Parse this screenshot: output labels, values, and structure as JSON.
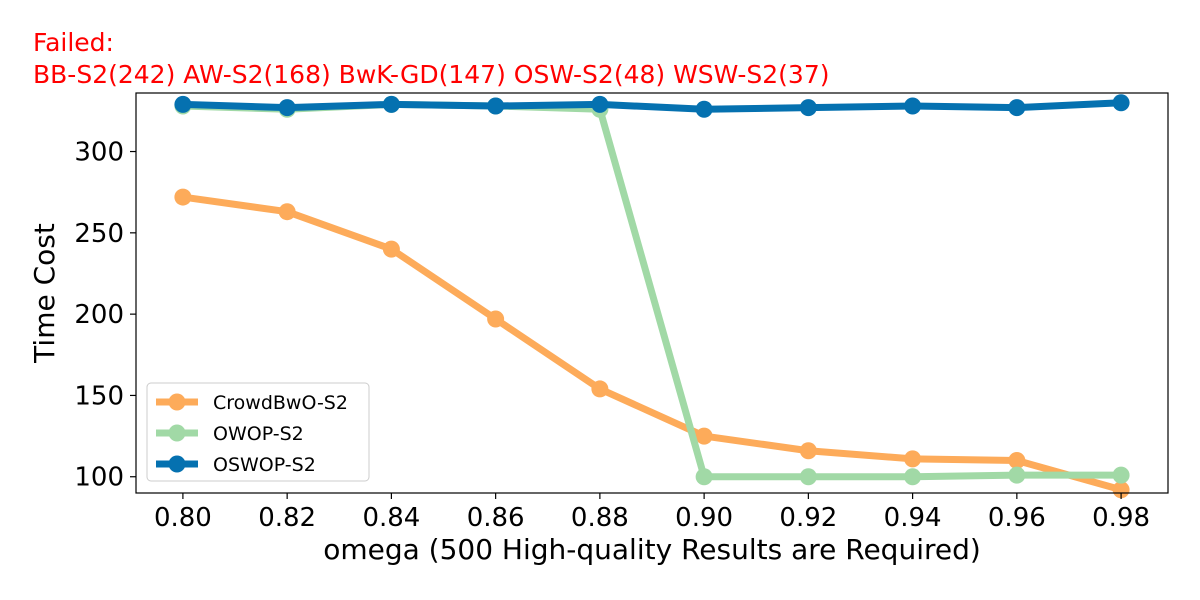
{
  "chart_data": {
    "type": "line",
    "title_lines": [
      "Failed:",
      "BB-S2(242) AW-S2(168) BwK-GD(147) OSW-S2(48) WSW-S2(37)"
    ],
    "xlabel": "omega (500 High-quality Results are Required)",
    "ylabel": "Time Cost",
    "x": [
      0.8,
      0.82,
      0.84,
      0.86,
      0.88,
      0.9,
      0.92,
      0.94,
      0.96,
      0.98
    ],
    "x_tick_labels": [
      "0.80",
      "0.82",
      "0.84",
      "0.86",
      "0.88",
      "0.90",
      "0.92",
      "0.94",
      "0.96",
      "0.98"
    ],
    "y_ticks": [
      100,
      150,
      200,
      250,
      300
    ],
    "y_tick_labels": [
      "100",
      "150",
      "200",
      "250",
      "300"
    ],
    "xlim": [
      0.791,
      0.989
    ],
    "ylim": [
      90,
      336
    ],
    "grid": false,
    "legend_position": "lower-left",
    "series": [
      {
        "name": "CrowdBwO-S2",
        "color": "#fdab5a",
        "values": [
          272,
          263,
          240,
          197,
          154,
          125,
          116,
          111,
          110,
          92
        ]
      },
      {
        "name": "OWOP-S2",
        "color": "#a1d9a6",
        "values": [
          328,
          326,
          329,
          328,
          326,
          100,
          100,
          100,
          101,
          101
        ]
      },
      {
        "name": "OSWOP-S2",
        "color": "#0571b0",
        "values": [
          329,
          327,
          329,
          328,
          329,
          326,
          327,
          328,
          327,
          330
        ]
      }
    ]
  }
}
